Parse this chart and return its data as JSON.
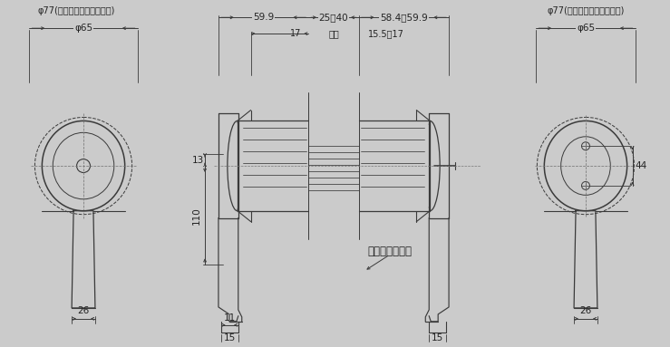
{
  "bg_color": "#cbcbcb",
  "line_color": "#3a3a3a",
  "dim_color": "#3a3a3a",
  "text_color": "#222222",
  "fig_width": 7.39,
  "fig_height": 3.83,
  "annotations": {
    "phi77_left": "φ77(エスカッション使用時)",
    "phi65_left": "φ65",
    "phi77_right": "φ77(エスカッション使用時)",
    "phi65_right": "φ65",
    "dim_599": "59.9",
    "dim_25_40": "25～40",
    "dim_584_599": "58.4～59.9",
    "dim_17": "17",
    "dim_door": "扇厚",
    "dim_155_17": "15.5～17",
    "dim_13": "13",
    "dim_110": "110",
    "dim_26_left": "26",
    "dim_11": "11",
    "dim_15_left": "15",
    "dim_15_right": "15",
    "dim_44": "44",
    "dim_26_right": "26",
    "escutcheon": "エスカッション"
  }
}
